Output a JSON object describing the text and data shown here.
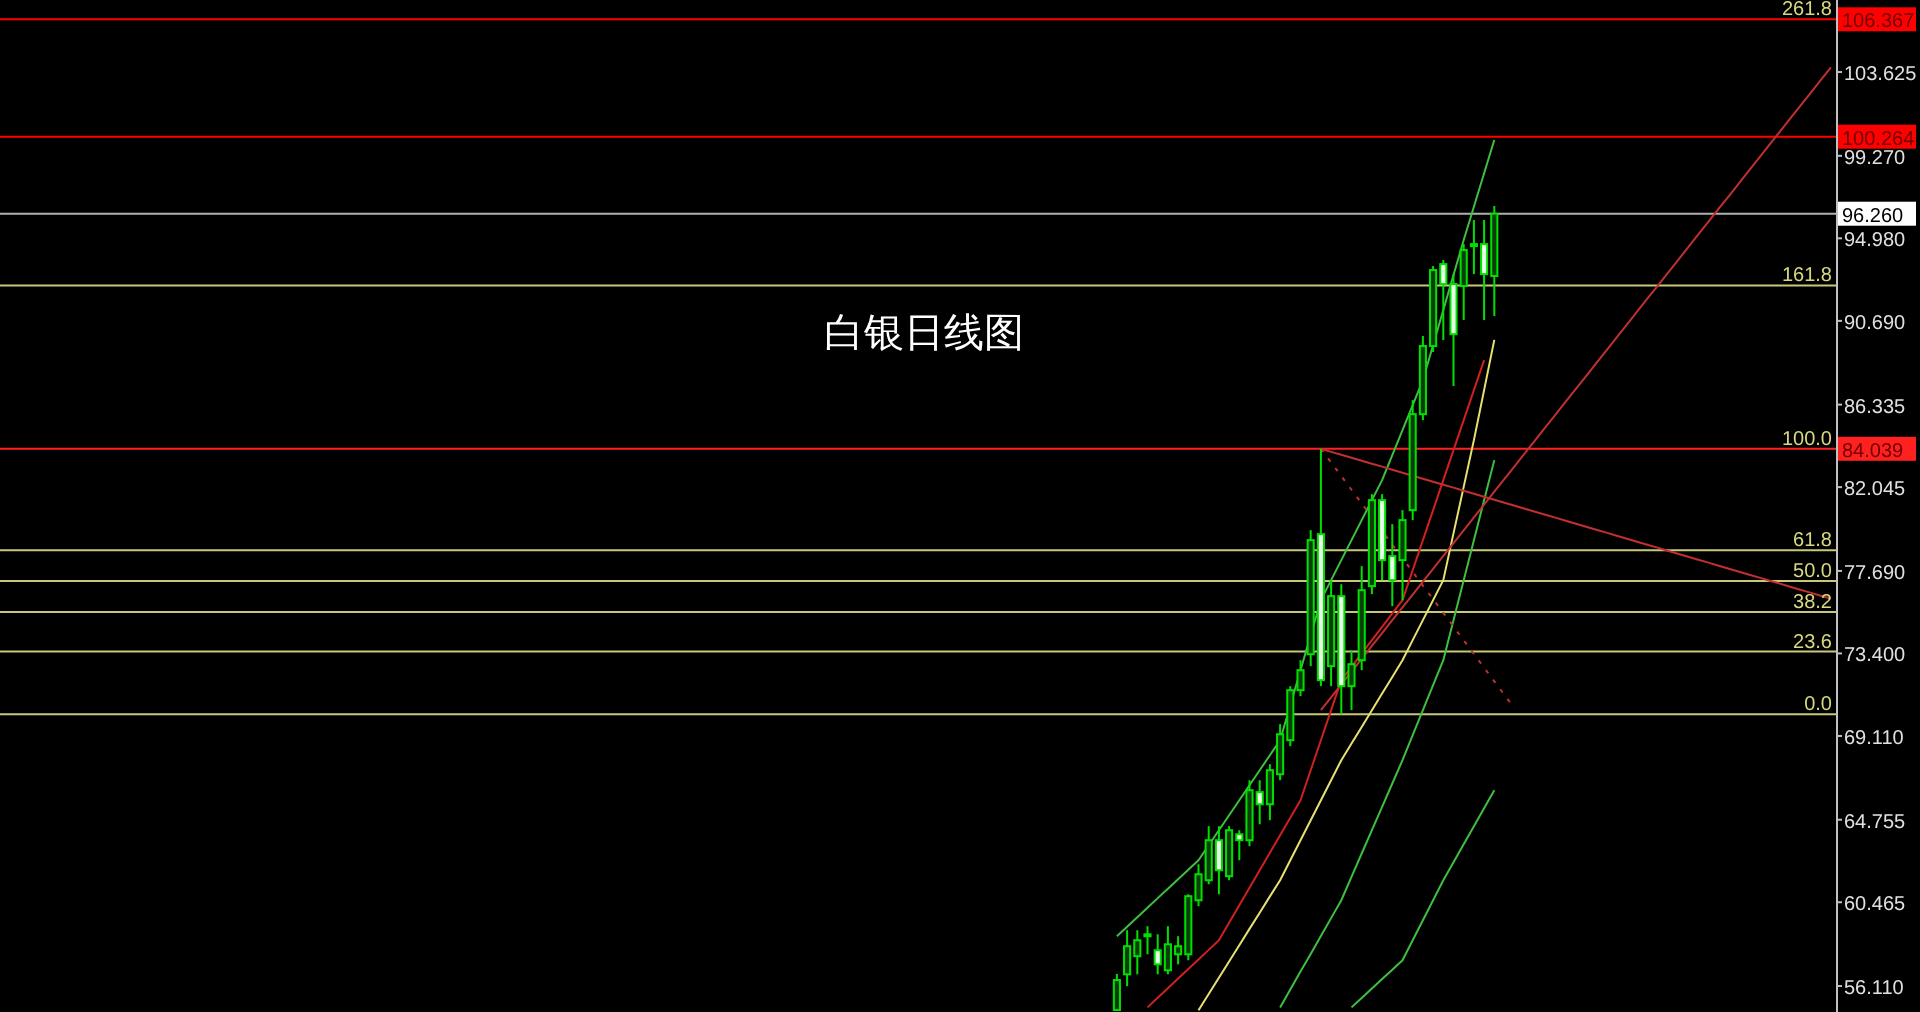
{
  "chart_data": {
    "type": "candlestick",
    "title": "白银日线图",
    "categories": [
      null,
      null,
      null,
      null,
      null,
      null,
      null,
      null,
      null,
      null,
      null,
      null,
      null,
      null,
      null,
      null,
      null,
      null,
      null,
      null,
      null,
      null,
      null,
      null,
      null,
      null,
      null,
      null,
      null,
      null,
      null,
      null,
      null,
      null,
      null,
      null,
      null,
      null,
      null,
      null,
      null,
      null,
      null,
      null,
      null,
      null,
      null,
      null,
      null,
      null,
      null,
      null,
      null,
      null,
      null,
      null,
      null,
      null,
      null,
      null,
      null,
      null,
      null,
      null,
      null,
      null,
      null,
      null,
      null,
      null,
      null,
      null,
      null,
      null,
      null,
      null,
      null,
      null,
      null,
      null,
      null,
      null,
      null,
      null,
      null,
      null,
      null,
      null,
      null,
      null,
      null,
      null,
      null,
      null,
      null,
      null,
      null,
      null,
      null,
      null,
      null,
      null,
      null,
      null,
      null,
      null,
      null,
      null,
      null,
      null,
      null,
      null,
      null,
      null,
      null,
      null,
      null,
      null,
      null,
      null,
      null,
      null,
      null,
      null,
      null,
      null,
      null,
      null,
      null,
      null,
      null,
      null,
      null,
      null,
      null,
      null,
      null,
      null,
      null,
      null,
      null,
      null,
      null,
      null,
      null,
      null,
      null,
      null,
      null,
      null,
      null,
      null,
      null,
      null,
      null,
      null,
      null,
      null,
      null,
      null,
      null,
      null,
      null,
      null,
      null,
      null,
      null,
      null,
      null,
      null,
      null,
      null,
      null,
      null,
      null,
      null,
      null,
      null,
      null,
      null
    ],
    "ohlc": [
      null,
      null,
      null,
      null,
      null,
      null,
      null,
      null,
      null,
      null,
      null,
      null,
      null,
      null,
      null,
      null,
      null,
      null,
      null,
      null,
      null,
      null,
      null,
      null,
      null,
      null,
      null,
      null,
      null,
      null,
      null,
      null,
      null,
      null,
      null,
      null,
      null,
      null,
      null,
      null,
      null,
      null,
      null,
      null,
      null,
      null,
      null,
      null,
      null,
      null,
      null,
      null,
      null,
      null,
      null,
      null,
      null,
      null,
      null,
      null,
      null,
      null,
      null,
      null,
      null,
      null,
      null,
      null,
      null,
      null,
      null,
      null,
      null,
      null,
      null,
      null,
      null,
      null,
      null,
      null,
      null,
      null,
      null,
      null,
      null,
      null,
      null,
      null,
      null,
      null,
      null,
      null,
      null,
      null,
      null,
      null,
      null,
      null,
      null,
      null,
      null,
      null,
      null,
      null,
      null,
      null,
      null,
      null,
      null,
      [
        54.86,
        56.74,
        54.86,
        56.42
      ],
      [
        56.72,
        59.01,
        56.1,
        58.18
      ],
      [
        57.66,
        59.01,
        56.72,
        58.49
      ],
      [
        58.7,
        59.22,
        57.76,
        58.8
      ],
      [
        57.97,
        58.8,
        56.72,
        57.24
      ],
      [
        56.93,
        59.22,
        56.72,
        58.28
      ],
      [
        57.76,
        58.7,
        57.24,
        58.18
      ],
      [
        57.76,
        60.88,
        57.45,
        60.78
      ],
      [
        60.57,
        62.44,
        60.26,
        61.92
      ],
      [
        61.61,
        64.42,
        61.4,
        63.69
      ],
      [
        63.69,
        64.42,
        60.88,
        62.13
      ],
      [
        61.82,
        64.42,
        61.61,
        64.21
      ],
      [
        64.0,
        64.21,
        62.65,
        63.69
      ],
      [
        63.69,
        66.81,
        63.38,
        66.29
      ],
      [
        66.19,
        66.81,
        64.52,
        65.56
      ],
      [
        65.56,
        67.64,
        64.73,
        67.33
      ],
      [
        67.12,
        69.72,
        66.81,
        69.2
      ],
      [
        68.89,
        71.7,
        68.58,
        71.49
      ],
      [
        71.49,
        73.05,
        71.18,
        72.53
      ],
      [
        73.36,
        79.81,
        72.74,
        79.29
      ],
      [
        79.6,
        84.04,
        71.7,
        72.01
      ],
      [
        72.74,
        77.21,
        71.7,
        76.38
      ],
      [
        76.38,
        77.0,
        70.24,
        71.7
      ],
      [
        71.7,
        73.57,
        70.45,
        72.84
      ],
      [
        73.05,
        77.94,
        72.53,
        76.69
      ],
      [
        76.9,
        81.68,
        76.48,
        81.37
      ],
      [
        81.37,
        81.68,
        77.21,
        78.25
      ],
      [
        78.46,
        80.12,
        75.86,
        77.21
      ],
      [
        78.25,
        80.85,
        76.17,
        80.33
      ],
      [
        80.85,
        86.57,
        80.33,
        85.84
      ],
      [
        85.84,
        89.9,
        85.53,
        89.38
      ],
      [
        89.38,
        93.54,
        89.07,
        93.33
      ],
      [
        93.64,
        93.85,
        89.69,
        92.6
      ],
      [
        92.6,
        93.12,
        87.3,
        90.0
      ],
      [
        92.5,
        94.68,
        90.73,
        94.37
      ],
      [
        94.58,
        95.93,
        93.12,
        94.68
      ],
      [
        94.68,
        95.93,
        90.73,
        93.12
      ],
      [
        93.02,
        96.66,
        90.94,
        96.26
      ],
      null,
      null,
      null,
      null,
      null,
      null,
      null,
      null,
      null,
      null,
      null,
      null,
      null,
      null,
      null,
      null,
      null,
      null,
      null,
      null,
      null,
      null,
      null,
      null,
      null,
      null,
      null,
      null,
      null,
      null,
      null,
      null,
      null
    ],
    "color": "#00e000",
    "series": [
      {
        "type": "line",
        "color": "#3fbf3f",
        "values": [
          null,
          null,
          null,
          null,
          null,
          null,
          null,
          null,
          null,
          null,
          null,
          null,
          null,
          null,
          null,
          null,
          null,
          null,
          null,
          null,
          null,
          null,
          null,
          null,
          null,
          null,
          null,
          null,
          null,
          null,
          null,
          null,
          null,
          null,
          null,
          null,
          null,
          null,
          null,
          null,
          null,
          null,
          null,
          null,
          null,
          null,
          null,
          null,
          null,
          null,
          null,
          null,
          null,
          null,
          null,
          null,
          null,
          null,
          null,
          null,
          null,
          null,
          null,
          null,
          null,
          null,
          null,
          null,
          null,
          null,
          null,
          null,
          null,
          null,
          null,
          null,
          null,
          null,
          null,
          null,
          null,
          null,
          null,
          null,
          null,
          null,
          null,
          null,
          null,
          null,
          null,
          null,
          null,
          null,
          null,
          null,
          null,
          null,
          null,
          null,
          null,
          null,
          null,
          null,
          null,
          null,
          null,
          null,
          null,
          58.7,
          59.19,
          59.69,
          60.18,
          60.68,
          61.17,
          61.66,
          62.16,
          62.65,
          63.43,
          64.21,
          64.99,
          65.77,
          66.55,
          67.33,
          68.11,
          68.89,
          70.71,
          72.53,
          74.35,
          76.17,
          77.21,
          78.25,
          79.29,
          80.33,
          81.37,
          82.41,
          83.71,
          85.01,
          86.31,
          87.61,
          89.43,
          91.25,
          93.07,
          94.89,
          96.62,
          98.36,
          100.09,
          null,
          null,
          null,
          null,
          null,
          null,
          null,
          null,
          null,
          null,
          null,
          null,
          null,
          null,
          null,
          null,
          null,
          null,
          null,
          null,
          null,
          null,
          null,
          null,
          null,
          null,
          null,
          null,
          null,
          null,
          null,
          null,
          null
        ]
      },
      {
        "type": "line",
        "color": "#e8e070",
        "values": [
          null,
          null,
          null,
          null,
          null,
          null,
          null,
          null,
          null,
          null,
          null,
          null,
          null,
          null,
          null,
          null,
          null,
          null,
          null,
          null,
          null,
          null,
          null,
          null,
          null,
          null,
          null,
          null,
          null,
          null,
          null,
          null,
          null,
          null,
          null,
          null,
          null,
          null,
          null,
          null,
          null,
          null,
          null,
          null,
          null,
          null,
          null,
          null,
          null,
          null,
          null,
          null,
          null,
          null,
          null,
          null,
          null,
          null,
          null,
          null,
          null,
          null,
          null,
          null,
          null,
          null,
          null,
          null,
          null,
          null,
          null,
          null,
          null,
          null,
          null,
          null,
          null,
          null,
          null,
          null,
          null,
          null,
          null,
          null,
          null,
          null,
          null,
          null,
          null,
          null,
          null,
          null,
          null,
          null,
          null,
          null,
          null,
          null,
          null,
          null,
          null,
          null,
          null,
          null,
          null,
          null,
          null,
          null,
          null,
          null,
          null,
          null,
          null,
          null,
          null,
          null,
          null,
          54.85,
          55.7,
          56.54,
          57.39,
          58.23,
          59.08,
          59.92,
          60.77,
          61.61,
          62.65,
          63.69,
          64.73,
          65.77,
          66.81,
          67.85,
          68.72,
          69.58,
          70.45,
          71.32,
          72.18,
          73.05,
          74.09,
          75.13,
          76.17,
          77.21,
          79.64,
          82.06,
          84.49,
          87.09,
          89.7,
          null,
          null,
          null,
          null,
          null,
          null,
          null,
          null,
          null,
          null,
          null,
          null,
          null,
          null,
          null,
          null,
          null,
          null,
          null,
          null,
          null,
          null,
          null,
          null,
          null,
          null,
          null,
          null,
          null,
          null,
          null,
          null,
          null
        ]
      },
      {
        "type": "line",
        "color": "#d02020",
        "values": [
          null,
          null,
          null,
          null,
          null,
          null,
          null,
          null,
          null,
          null,
          null,
          null,
          null,
          null,
          null,
          null,
          null,
          null,
          null,
          null,
          null,
          null,
          null,
          null,
          null,
          null,
          null,
          null,
          null,
          null,
          null,
          null,
          null,
          null,
          null,
          null,
          null,
          null,
          null,
          null,
          null,
          null,
          null,
          null,
          null,
          null,
          null,
          null,
          null,
          null,
          null,
          null,
          null,
          null,
          null,
          null,
          null,
          null,
          null,
          null,
          null,
          null,
          null,
          null,
          null,
          null,
          null,
          null,
          null,
          null,
          null,
          null,
          null,
          null,
          null,
          null,
          null,
          null,
          null,
          null,
          null,
          null,
          null,
          null,
          null,
          null,
          null,
          null,
          null,
          null,
          null,
          null,
          null,
          null,
          null,
          null,
          null,
          null,
          null,
          null,
          null,
          null,
          null,
          null,
          null,
          null,
          null,
          null,
          null,
          null,
          null,
          null,
          55.0,
          55.5,
          56.0,
          56.5,
          56.99,
          57.49,
          57.99,
          58.49,
          59.4,
          60.31,
          61.22,
          62.13,
          63.04,
          63.95,
          64.86,
          65.77,
          67.33,
          68.89,
          70.45,
          72.01,
          72.7,
          73.4,
          74.09,
          74.78,
          75.48,
          76.17,
          77.73,
          79.29,
          80.85,
          82.41,
          83.97,
          85.53,
          87.09,
          88.65,
          null,
          null,
          null,
          null,
          null,
          null,
          null,
          null,
          null,
          null,
          null,
          null,
          null,
          null,
          null,
          null,
          null,
          null,
          null,
          null,
          null,
          null,
          null,
          null,
          null,
          null,
          null,
          null,
          null,
          null,
          null,
          null,
          null,
          null
        ]
      },
      {
        "type": "line",
        "color": "#3fbf3f",
        "values": [
          null,
          null,
          null,
          null,
          null,
          null,
          null,
          null,
          null,
          null,
          null,
          null,
          null,
          null,
          null,
          null,
          null,
          null,
          null,
          null,
          null,
          null,
          null,
          null,
          null,
          null,
          null,
          null,
          null,
          null,
          null,
          null,
          null,
          null,
          null,
          null,
          null,
          null,
          null,
          null,
          null,
          null,
          null,
          null,
          null,
          null,
          null,
          null,
          null,
          null,
          null,
          null,
          null,
          null,
          null,
          null,
          null,
          null,
          null,
          null,
          null,
          null,
          null,
          null,
          null,
          null,
          null,
          null,
          null,
          null,
          null,
          null,
          null,
          null,
          null,
          null,
          null,
          null,
          null,
          null,
          null,
          null,
          null,
          null,
          null,
          null,
          null,
          null,
          null,
          null,
          null,
          null,
          null,
          null,
          null,
          null,
          null,
          null,
          null,
          null,
          null,
          null,
          null,
          null,
          null,
          null,
          null,
          null,
          null,
          null,
          null,
          null,
          null,
          null,
          null,
          null,
          null,
          null,
          null,
          null,
          null,
          null,
          null,
          null,
          null,
          55.0,
          55.93,
          56.86,
          57.78,
          58.71,
          59.64,
          60.57,
          61.78,
          63.0,
          64.21,
          65.42,
          66.64,
          67.85,
          69.15,
          70.45,
          71.75,
          73.05,
          75.13,
          77.21,
          79.29,
          81.37,
          83.45,
          null,
          null,
          null,
          null,
          null,
          null,
          null,
          null,
          null,
          null,
          null,
          null,
          null,
          null,
          null,
          null,
          null,
          null,
          null,
          null,
          null,
          null,
          null,
          null,
          null,
          null,
          null,
          null,
          null,
          null,
          null,
          null,
          null
        ]
      },
      {
        "type": "line",
        "color": "#3fbf3f",
        "values": [
          null,
          null,
          null,
          null,
          null,
          null,
          null,
          null,
          null,
          null,
          null,
          null,
          null,
          null,
          null,
          null,
          null,
          null,
          null,
          null,
          null,
          null,
          null,
          null,
          null,
          null,
          null,
          null,
          null,
          null,
          null,
          null,
          null,
          null,
          null,
          null,
          null,
          null,
          null,
          null,
          null,
          null,
          null,
          null,
          null,
          null,
          null,
          null,
          null,
          null,
          null,
          null,
          null,
          null,
          null,
          null,
          null,
          null,
          null,
          null,
          null,
          null,
          null,
          null,
          null,
          null,
          null,
          null,
          null,
          null,
          null,
          null,
          null,
          null,
          null,
          null,
          null,
          null,
          null,
          null,
          null,
          null,
          null,
          null,
          null,
          null,
          null,
          null,
          null,
          null,
          null,
          null,
          null,
          null,
          null,
          null,
          null,
          null,
          null,
          null,
          null,
          null,
          null,
          null,
          null,
          null,
          null,
          null,
          null,
          null,
          null,
          null,
          null,
          null,
          null,
          null,
          null,
          null,
          null,
          null,
          null,
          null,
          null,
          null,
          null,
          null,
          null,
          null,
          null,
          null,
          null,
          null,
          55.0,
          55.49,
          55.98,
          56.47,
          56.96,
          57.45,
          58.49,
          59.53,
          60.57,
          61.61,
          62.55,
          63.48,
          64.42,
          65.35,
          66.29,
          null,
          null,
          null,
          null,
          null,
          null,
          null,
          null,
          null,
          null,
          null,
          null,
          null,
          null,
          null,
          null,
          null,
          null,
          null,
          null,
          null,
          null,
          null,
          null,
          null,
          null,
          null,
          null,
          null,
          null,
          null,
          null,
          null
        ]
      },
      {
        "type": "line",
        "color": "#c03030",
        "values": [
          null,
          null,
          null,
          null,
          null,
          null,
          null,
          null,
          null,
          null,
          null,
          null,
          null,
          null,
          null,
          null,
          null,
          null,
          null,
          null,
          null,
          null,
          null,
          null,
          null,
          null,
          null,
          null,
          null,
          null,
          null,
          null,
          null,
          null,
          null,
          null,
          null,
          null,
          null,
          null,
          null,
          null,
          null,
          null,
          null,
          null,
          null,
          null,
          null,
          null,
          null,
          null,
          null,
          null,
          null,
          null,
          null,
          null,
          null,
          null,
          null,
          null,
          null,
          null,
          null,
          null,
          null,
          null,
          null,
          null,
          null,
          null,
          null,
          null,
          null,
          null,
          null,
          null,
          null,
          null,
          null,
          null,
          null,
          null,
          null,
          null,
          null,
          null,
          null,
          null,
          null,
          null,
          null,
          null,
          null,
          null,
          null,
          null,
          null,
          null,
          null,
          null,
          null,
          null,
          null,
          null,
          null,
          null,
          null,
          null,
          null,
          null,
          null,
          null,
          null,
          null,
          null,
          null,
          null,
          null,
          null,
          null,
          null,
          null,
          null,
          null,
          null,
          null,
          null,
          70.45,
          71.12,
          71.79,
          72.45,
          73.12,
          73.79,
          74.46,
          75.13,
          75.79,
          76.46,
          77.13,
          77.8,
          78.47,
          79.14,
          79.8,
          80.47,
          81.14,
          81.81,
          82.48,
          83.14,
          83.81,
          84.48,
          85.15,
          85.82,
          86.49,
          87.16,
          87.82,
          88.49,
          89.16,
          89.83,
          90.5,
          91.17,
          91.84,
          92.5,
          93.17,
          93.84,
          94.51,
          95.18,
          95.85,
          96.52,
          97.18,
          97.85,
          98.52,
          99.19,
          99.86,
          100.53,
          101.2,
          101.86,
          102.53,
          103.2,
          103.87
        ]
      },
      {
        "type": "line",
        "color": "#c03030",
        "values": [
          null,
          null,
          null,
          null,
          null,
          null,
          null,
          null,
          null,
          null,
          null,
          null,
          null,
          null,
          null,
          null,
          null,
          null,
          null,
          null,
          null,
          null,
          null,
          null,
          null,
          null,
          null,
          null,
          null,
          null,
          null,
          null,
          null,
          null,
          null,
          null,
          null,
          null,
          null,
          null,
          null,
          null,
          null,
          null,
          null,
          null,
          null,
          null,
          null,
          null,
          null,
          null,
          null,
          null,
          null,
          null,
          null,
          null,
          null,
          null,
          null,
          null,
          null,
          null,
          null,
          null,
          null,
          null,
          null,
          null,
          null,
          null,
          null,
          null,
          null,
          null,
          null,
          null,
          null,
          null,
          null,
          null,
          null,
          null,
          null,
          null,
          null,
          null,
          null,
          null,
          null,
          null,
          null,
          null,
          null,
          null,
          null,
          null,
          null,
          null,
          null,
          null,
          null,
          null,
          null,
          null,
          null,
          null,
          null,
          null,
          null,
          null,
          null,
          null,
          null,
          null,
          null,
          null,
          null,
          null,
          null,
          null,
          null,
          null,
          null,
          null,
          null,
          null,
          null,
          84.04,
          83.88,
          83.73,
          83.57,
          83.42,
          83.26,
          83.11,
          82.95,
          82.79,
          82.64,
          82.48,
          82.33,
          82.17,
          82.02,
          81.86,
          81.7,
          81.55,
          81.39,
          81.23,
          81.08,
          80.92,
          80.77,
          80.61,
          80.46,
          80.3,
          80.14,
          79.99,
          79.83,
          79.68,
          79.52,
          79.36,
          79.21,
          79.05,
          78.9,
          78.74,
          78.58,
          78.43,
          78.27,
          78.12,
          77.96,
          77.8,
          77.65,
          77.49,
          77.34,
          77.18,
          77.03,
          76.87,
          76.71,
          76.56,
          76.4,
          76.25
        ]
      },
      {
        "type": "line",
        "color": "#c03030",
        "line_style": "dotted",
        "values": [
          null,
          null,
          null,
          null,
          null,
          null,
          null,
          null,
          null,
          null,
          null,
          null,
          null,
          null,
          null,
          null,
          null,
          null,
          null,
          null,
          null,
          null,
          null,
          null,
          null,
          null,
          null,
          null,
          null,
          null,
          null,
          null,
          null,
          null,
          null,
          null,
          null,
          null,
          null,
          null,
          null,
          null,
          null,
          null,
          null,
          null,
          null,
          null,
          null,
          null,
          null,
          null,
          null,
          null,
          null,
          null,
          null,
          null,
          null,
          null,
          null,
          null,
          null,
          null,
          null,
          null,
          null,
          null,
          null,
          null,
          null,
          null,
          null,
          null,
          null,
          null,
          null,
          null,
          null,
          null,
          null,
          null,
          null,
          null,
          null,
          null,
          null,
          null,
          null,
          null,
          null,
          null,
          null,
          null,
          null,
          null,
          null,
          null,
          null,
          null,
          null,
          null,
          null,
          null,
          null,
          null,
          null,
          null,
          null,
          null,
          null,
          null,
          null,
          null,
          null,
          null,
          null,
          null,
          null,
          null,
          null,
          null,
          null,
          null,
          null,
          null,
          null,
          null,
          null,
          84.04,
          83.33,
          82.62,
          81.91,
          81.2,
          80.49,
          79.77,
          79.06,
          78.35,
          77.64,
          76.93,
          76.22,
          75.51,
          74.8,
          74.08,
          73.37,
          72.66,
          71.95,
          71.24,
          70.53,
          null,
          null,
          null,
          null,
          null,
          null,
          null,
          null,
          null,
          null,
          null,
          null,
          null,
          null,
          null,
          null,
          null,
          null,
          null,
          null,
          null,
          null,
          null,
          null,
          null,
          null,
          null,
          null,
          null,
          null,
          null
        ]
      }
    ],
    "ref_lines": [
      {
        "axis": "y",
        "value": 106.367,
        "label": "106.367",
        "color": "#ff0000"
      },
      {
        "axis": "y",
        "value": 100.264,
        "label": "100.264",
        "color": "#ff0000"
      },
      {
        "axis": "y",
        "value": 96.26,
        "label": "96.260",
        "color": "#b0b0b0"
      },
      {
        "axis": "y",
        "value": 92.53,
        "color": "#c8c87a"
      },
      {
        "axis": "y",
        "value": 84.039,
        "label": "84.039",
        "color": "#ff2020"
      },
      {
        "axis": "y",
        "value": 78.77,
        "color": "#c8c87a"
      },
      {
        "axis": "y",
        "value": 77.17,
        "color": "#c8c87a"
      },
      {
        "axis": "y",
        "value": 75.55,
        "color": "#c8c87a"
      },
      {
        "axis": "y",
        "value": 73.5,
        "color": "#c8c87a"
      },
      {
        "axis": "y",
        "value": 70.24,
        "color": "#c8c87a"
      }
    ],
    "annotations": [
      {
        "text": "261.8",
        "y": 106.367
      },
      {
        "text": "161.8",
        "y": 92.53
      },
      {
        "text": "100.0",
        "y": 84.039
      },
      {
        "text": "61.8",
        "y": 78.77
      },
      {
        "text": "50.0",
        "y": 77.17
      },
      {
        "text": "38.2",
        "y": 75.55
      },
      {
        "text": "23.6",
        "y": 73.5
      },
      {
        "text": "0.0",
        "y": 70.24
      }
    ],
    "ylim": [
      54.76,
      107.37
    ],
    "yticks": [
      {
        "value": 56.11,
        "label": "56.110"
      },
      {
        "value": 60.465,
        "label": "60.465"
      },
      {
        "value": 64.755,
        "label": "64.755"
      },
      {
        "value": 69.11,
        "label": "69.110"
      },
      {
        "value": 73.4,
        "label": "73.400"
      },
      {
        "value": 77.69,
        "label": "77.690"
      },
      {
        "value": 82.045,
        "label": "82.045"
      },
      {
        "value": 86.335,
        "label": "86.335"
      },
      {
        "value": 90.69,
        "label": "90.690"
      },
      {
        "value": 94.98,
        "label": "94.980"
      },
      {
        "value": 99.27,
        "label": "99.270"
      },
      {
        "value": 103.625,
        "label": "103.625"
      }
    ],
    "tick_labels": "y"
  }
}
